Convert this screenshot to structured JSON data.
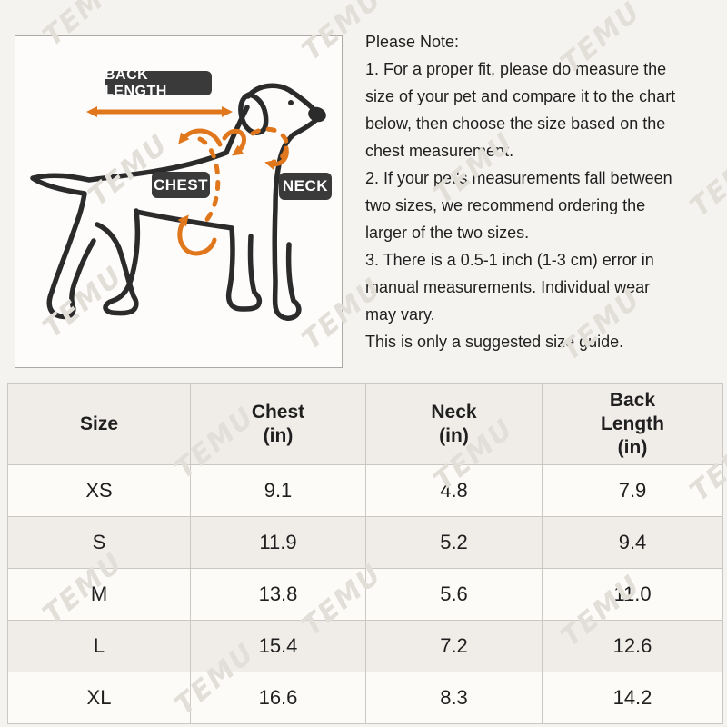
{
  "watermark": {
    "text": "TEMU"
  },
  "diagram": {
    "back_length_label": "BACK LENGTH",
    "chest_label": "CHEST",
    "neck_label": "NECK"
  },
  "note": {
    "title": "Please Note:",
    "body": "1. For a proper fit, please do measure the\nsize of your pet and compare it to the chart\nbelow, then choose the size based on the\nchest measurement.\n2. If your pet's measurements fall between\ntwo sizes, we recommend ordering the\nlarger of the two sizes.\n3. There is a 0.5-1 inch (1-3 cm) error in\nmanual measurements. Individual wear\nmay vary.\nThis is only a suggested size guide."
  },
  "size_table": {
    "columns": [
      "Size",
      "Chest\n(in)",
      "Neck\n(in)",
      "Back\nLength\n(in)"
    ],
    "rows": [
      [
        "XS",
        "9.1",
        "4.8",
        "7.9"
      ],
      [
        "S",
        "11.9",
        "5.2",
        "9.4"
      ],
      [
        "M",
        "13.8",
        "5.6",
        "11.0"
      ],
      [
        "L",
        "15.4",
        "7.2",
        "12.6"
      ],
      [
        "XL",
        "16.6",
        "8.3",
        "14.2"
      ]
    ]
  },
  "colors": {
    "accent_orange": "#E0771C",
    "label_bg": "#3A3A3A",
    "label_text": "#FFFFFF",
    "dog_stroke": "#2B2B2B",
    "table_border": "#CBC8C4",
    "table_stripe": "#F0EDE9",
    "table_white": "#FCFBF8",
    "text": "#1F1F1F",
    "page_bg": "#F5F3F0",
    "diagram_bg": "#FDFCFA",
    "watermark": "#E2DED8"
  }
}
